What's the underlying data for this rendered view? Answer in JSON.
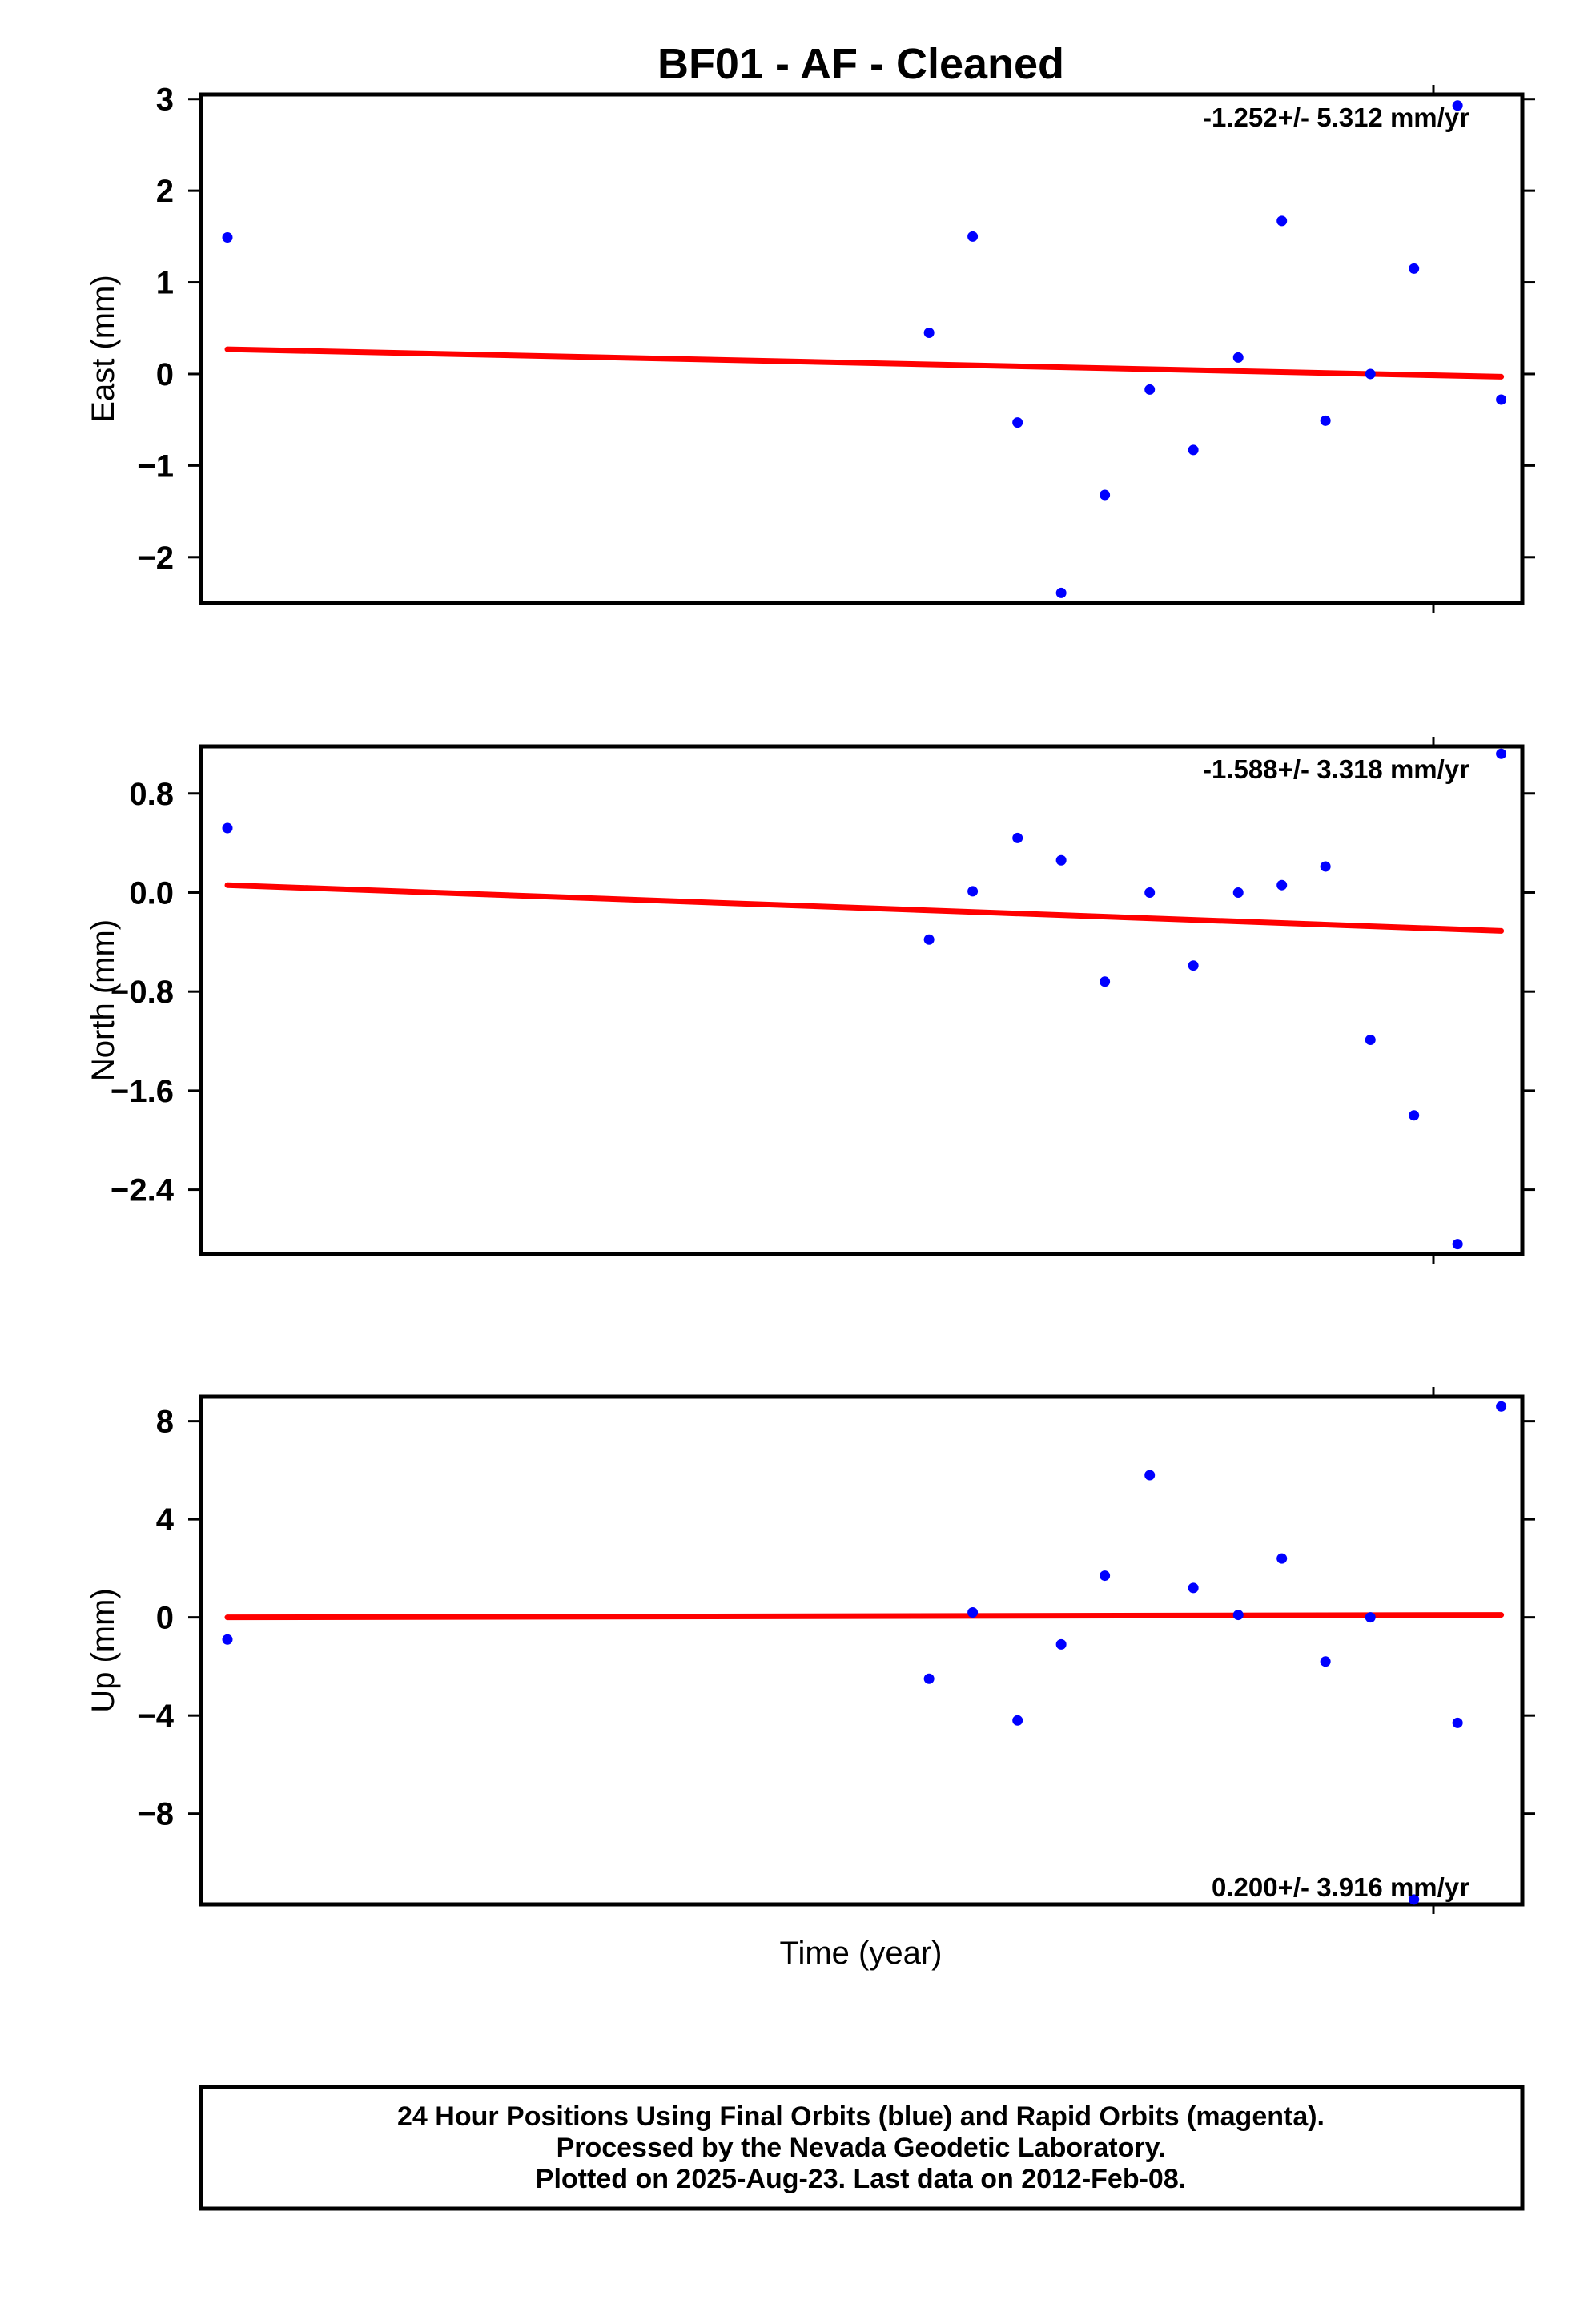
{
  "title": "BF01  - AF - Cleaned",
  "xlabel": "Time (year)",
  "footer": {
    "line1": "24 Hour Positions Using Final Orbits (blue) and Rapid Orbits (magenta).",
    "line2": "Processed by the Nevada Geodetic Laboratory.",
    "line3": "Plotted on 2025-Aug-23. Last data on 2012-Feb-08."
  },
  "colors": {
    "points": "#0000ff",
    "trend": "#ff0000",
    "axes": "#000000"
  },
  "chart_data": [
    {
      "type": "scatter",
      "name": "east",
      "ylabel": "East (mm)",
      "rate_label": "-1.252+/- 5.312 mm/yr",
      "rate_position": "top-right",
      "ylim": [
        -2.5,
        3.05
      ],
      "yticks": [
        3,
        2,
        1,
        0,
        -1,
        -2
      ],
      "yticklabels": [
        "3",
        "2",
        "1",
        "0",
        "−1",
        "−2"
      ],
      "points": [
        {
          "x": 0.02,
          "y": 1.49
        },
        {
          "x": 0.551,
          "y": 0.45
        },
        {
          "x": 0.584,
          "y": 1.5
        },
        {
          "x": 0.618,
          "y": -0.53
        },
        {
          "x": 0.651,
          "y": -2.39
        },
        {
          "x": 0.684,
          "y": -1.32
        },
        {
          "x": 0.718,
          "y": -0.17
        },
        {
          "x": 0.751,
          "y": -0.83
        },
        {
          "x": 0.785,
          "y": 0.18
        },
        {
          "x": 0.818,
          "y": 1.67
        },
        {
          "x": 0.851,
          "y": -0.51
        },
        {
          "x": 0.885,
          "y": 0.0
        },
        {
          "x": 0.918,
          "y": 1.15
        },
        {
          "x": 0.951,
          "y": 2.93
        },
        {
          "x": 0.984,
          "y": -0.28
        }
      ],
      "trend": {
        "x": [
          0.02,
          0.984
        ],
        "y": [
          0.27,
          -0.03
        ]
      }
    },
    {
      "type": "scatter",
      "name": "north",
      "ylabel": "North (mm)",
      "rate_label": "-1.588+/- 3.318 mm/yr",
      "rate_position": "top-right",
      "ylim": [
        -2.92,
        1.18
      ],
      "yticks": [
        0.8,
        0.0,
        -0.8,
        -1.6,
        -2.4
      ],
      "yticklabels": [
        "0.8",
        "0.0",
        "−0.8",
        "−1.6",
        "−2.4"
      ],
      "points": [
        {
          "x": 0.02,
          "y": 0.52
        },
        {
          "x": 0.551,
          "y": -0.38
        },
        {
          "x": 0.584,
          "y": 0.01
        },
        {
          "x": 0.618,
          "y": 0.44
        },
        {
          "x": 0.651,
          "y": 0.26
        },
        {
          "x": 0.684,
          "y": -0.72
        },
        {
          "x": 0.718,
          "y": 0.0
        },
        {
          "x": 0.751,
          "y": -0.59
        },
        {
          "x": 0.785,
          "y": 0.0
        },
        {
          "x": 0.818,
          "y": 0.06
        },
        {
          "x": 0.851,
          "y": 0.21
        },
        {
          "x": 0.885,
          "y": -1.19
        },
        {
          "x": 0.918,
          "y": -1.8
        },
        {
          "x": 0.951,
          "y": -2.84
        },
        {
          "x": 0.984,
          "y": 1.12
        }
      ],
      "trend": {
        "x": [
          0.02,
          0.984
        ],
        "y": [
          0.06,
          -0.31
        ]
      }
    },
    {
      "type": "scatter",
      "name": "up",
      "ylabel": "Up (mm)",
      "rate_label": "0.200+/- 3.916 mm/yr",
      "rate_position": "bottom-right",
      "ylim": [
        -11.7,
        9.0
      ],
      "yticks": [
        8,
        4,
        0,
        -4,
        -8
      ],
      "yticklabels": [
        "8",
        "4",
        "0",
        "−4",
        "−8"
      ],
      "points": [
        {
          "x": 0.02,
          "y": -0.9
        },
        {
          "x": 0.551,
          "y": -2.5
        },
        {
          "x": 0.584,
          "y": 0.2
        },
        {
          "x": 0.618,
          "y": -4.2
        },
        {
          "x": 0.651,
          "y": -1.1
        },
        {
          "x": 0.684,
          "y": 1.7
        },
        {
          "x": 0.718,
          "y": 5.8
        },
        {
          "x": 0.751,
          "y": 1.2
        },
        {
          "x": 0.785,
          "y": 0.1
        },
        {
          "x": 0.818,
          "y": 2.4
        },
        {
          "x": 0.851,
          "y": -1.8
        },
        {
          "x": 0.885,
          "y": 0.0
        },
        {
          "x": 0.918,
          "y": -11.5
        },
        {
          "x": 0.951,
          "y": -4.3
        },
        {
          "x": 0.984,
          "y": 8.6
        }
      ],
      "trend": {
        "x": [
          0.02,
          0.984
        ],
        "y": [
          0.0,
          0.1
        ]
      }
    }
  ]
}
